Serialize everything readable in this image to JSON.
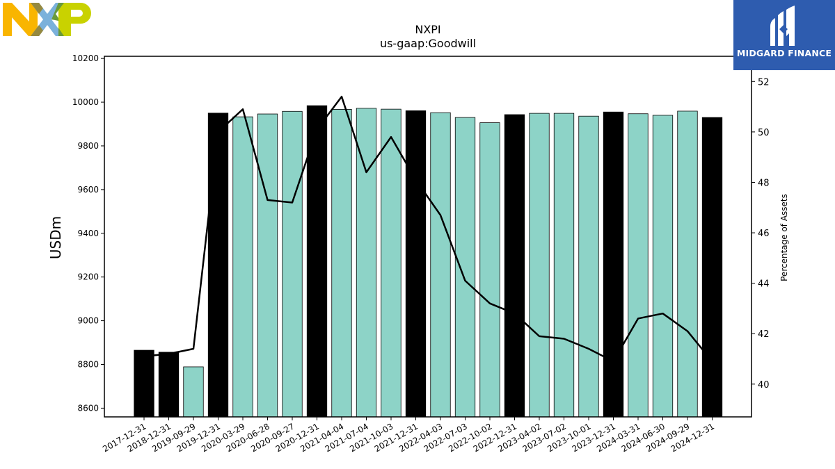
{
  "logos": {
    "company_logo_icon": "nxp-logo-icon",
    "brand_logo_icon": "midgard-finance-logo-icon",
    "brand_text": "MIDGARD FINANCE"
  },
  "colors": {
    "bar_default": "#8dd3c7",
    "bar_year_end": "#000000",
    "line": "#000000",
    "brand_bg": "#2e5caf"
  },
  "chart_data": {
    "type": "bar",
    "title": "NXPI",
    "subtitle": "us-gaap:Goodwill",
    "ylabel": "USDm",
    "y2label": "Percentage of Assets",
    "ylim": [
      8560,
      10210
    ],
    "y2lim": [
      38.7,
      53.0
    ],
    "yticks": [
      8600,
      8800,
      9000,
      9200,
      9400,
      9600,
      9800,
      10000,
      10200
    ],
    "y2ticks": [
      40,
      42,
      44,
      46,
      48,
      50,
      52
    ],
    "grid": false,
    "categories": [
      "2017-12-31",
      "2018-12-31",
      "2019-09-29",
      "2019-12-31",
      "2020-03-29",
      "2020-06-28",
      "2020-09-27",
      "2020-12-31",
      "2021-04-04",
      "2021-07-04",
      "2021-10-03",
      "2021-12-31",
      "2022-04-03",
      "2022-07-03",
      "2022-10-02",
      "2022-12-31",
      "2023-04-02",
      "2023-07-02",
      "2023-10-01",
      "2023-12-31",
      "2024-03-31",
      "2024-06-30",
      "2024-09-29",
      "2024-12-31"
    ],
    "series": [
      {
        "kind": "bar",
        "values": [
          8865,
          8856,
          8789,
          9950,
          9933,
          9946,
          9958,
          9984,
          9967,
          9972,
          9968,
          9961,
          9952,
          9930,
          9906,
          9943,
          9949,
          9949,
          9936,
          9955,
          9947,
          9940,
          9959,
          9930
        ],
        "year_end": [
          true,
          true,
          false,
          true,
          false,
          false,
          false,
          true,
          false,
          false,
          false,
          true,
          false,
          false,
          false,
          true,
          false,
          false,
          false,
          true,
          false,
          false,
          false,
          true
        ]
      },
      {
        "kind": "line",
        "axis": "right",
        "values": [
          41.1,
          41.2,
          41.4,
          50.0,
          50.9,
          47.3,
          47.2,
          50.1,
          51.4,
          48.4,
          49.8,
          48.1,
          46.7,
          44.1,
          43.2,
          42.8,
          41.9,
          41.8,
          41.4,
          40.9,
          42.6,
          42.8,
          42.1,
          40.9
        ]
      }
    ]
  }
}
